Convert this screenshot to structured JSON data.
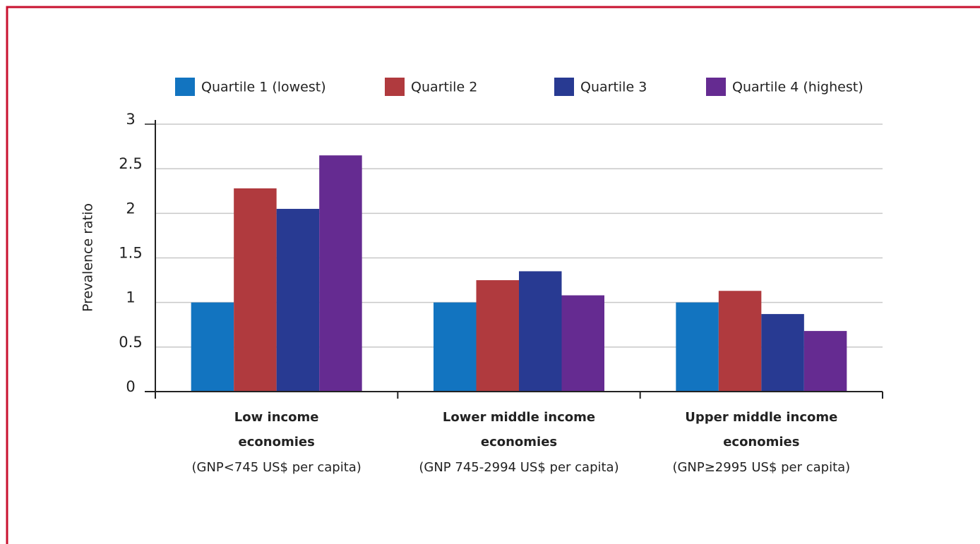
{
  "chart_data": {
    "type": "bar",
    "y_label": "Prevalence ratio",
    "categories": [
      "Low income economies",
      "Lower middle income economies",
      "Upper middle income economies"
    ],
    "category_subtitles": [
      "(GNP<745 US$ per capita)",
      "(GNP 745-2994 US$ per capita)",
      "(GNP≥2995 US$ per capita)"
    ],
    "series": [
      {
        "name": "Quartile 1 (lowest)",
        "color": "#1274c0",
        "values": [
          1.0,
          1.0,
          1.0
        ]
      },
      {
        "name": "Quartile 2",
        "color": "#b03a3e",
        "values": [
          2.28,
          1.25,
          1.13
        ]
      },
      {
        "name": "Quartile 3",
        "color": "#283a92",
        "values": [
          2.05,
          1.35,
          0.87
        ]
      },
      {
        "name": "Quartile 4 (highest)",
        "color": "#652b91",
        "values": [
          2.65,
          1.08,
          0.68
        ]
      }
    ],
    "ylim": [
      0,
      3
    ],
    "yticks": [
      0,
      0.5,
      1,
      1.5,
      2,
      2.5,
      3
    ],
    "grid": true,
    "legend": "top"
  }
}
